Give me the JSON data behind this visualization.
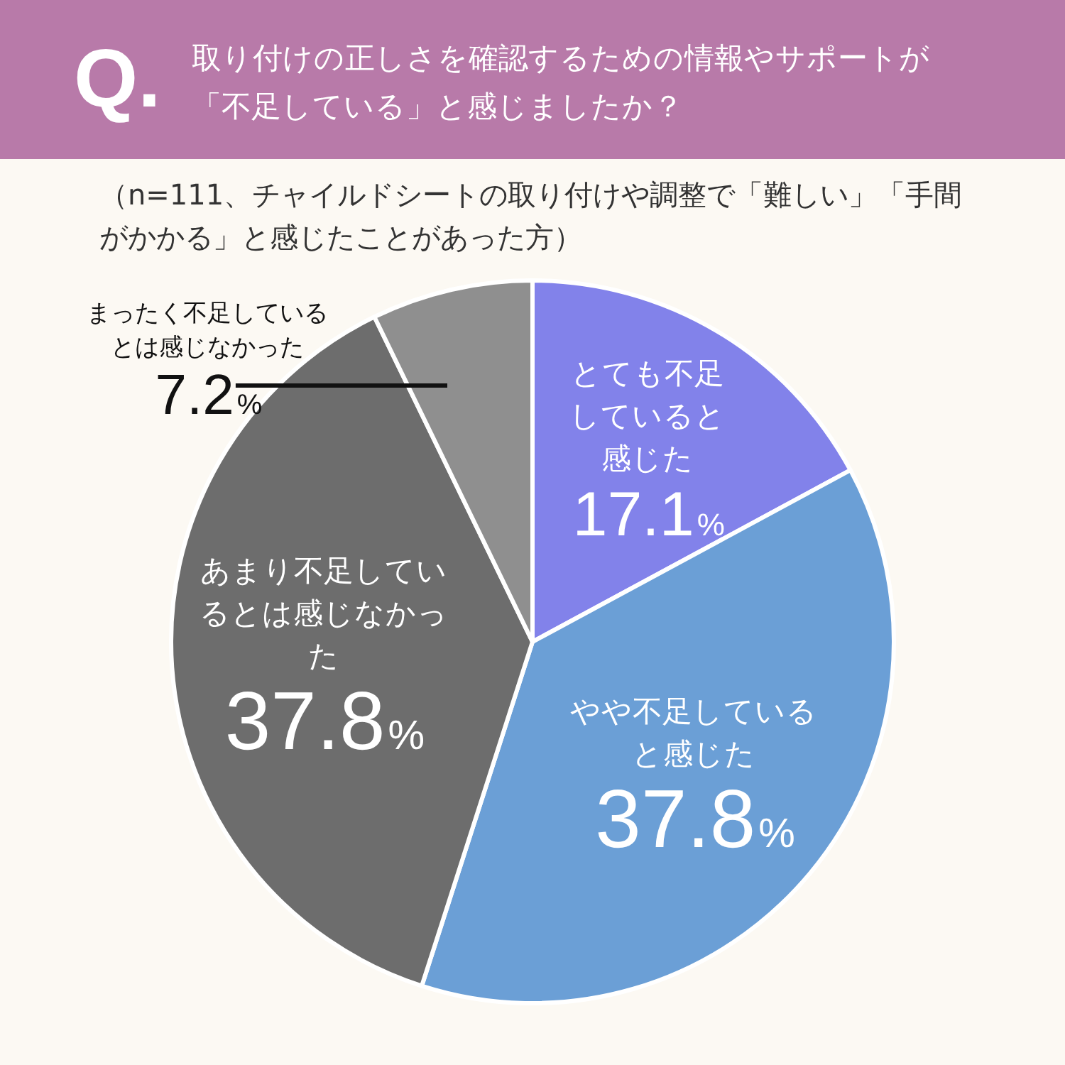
{
  "chart_data": {
    "type": "pie",
    "title": "取り付けの正しさを確認するための情報やサポートが「不足している」と感じましたか？",
    "subtitle": "（n=111、チャイルドシートの取り付けや調整で「難しい」「手間がかかる」と感じたことがあった方）",
    "annotations": [
      "Q."
    ],
    "categories": [
      "とても不足していると感じた",
      "やや不足していると感じた",
      "あまり不足しているとは感じなかった",
      "まったく不足しているとは感じなかった"
    ],
    "values": [
      17.1,
      37.8,
      37.8,
      7.2
    ],
    "value_labels": [
      "17.1%",
      "37.8%",
      "37.8%",
      "7.2%"
    ],
    "colors": [
      "#8282ea",
      "#6b9fd6",
      "#6d6d6d",
      "#8f8f8f"
    ],
    "legend": false
  }
}
